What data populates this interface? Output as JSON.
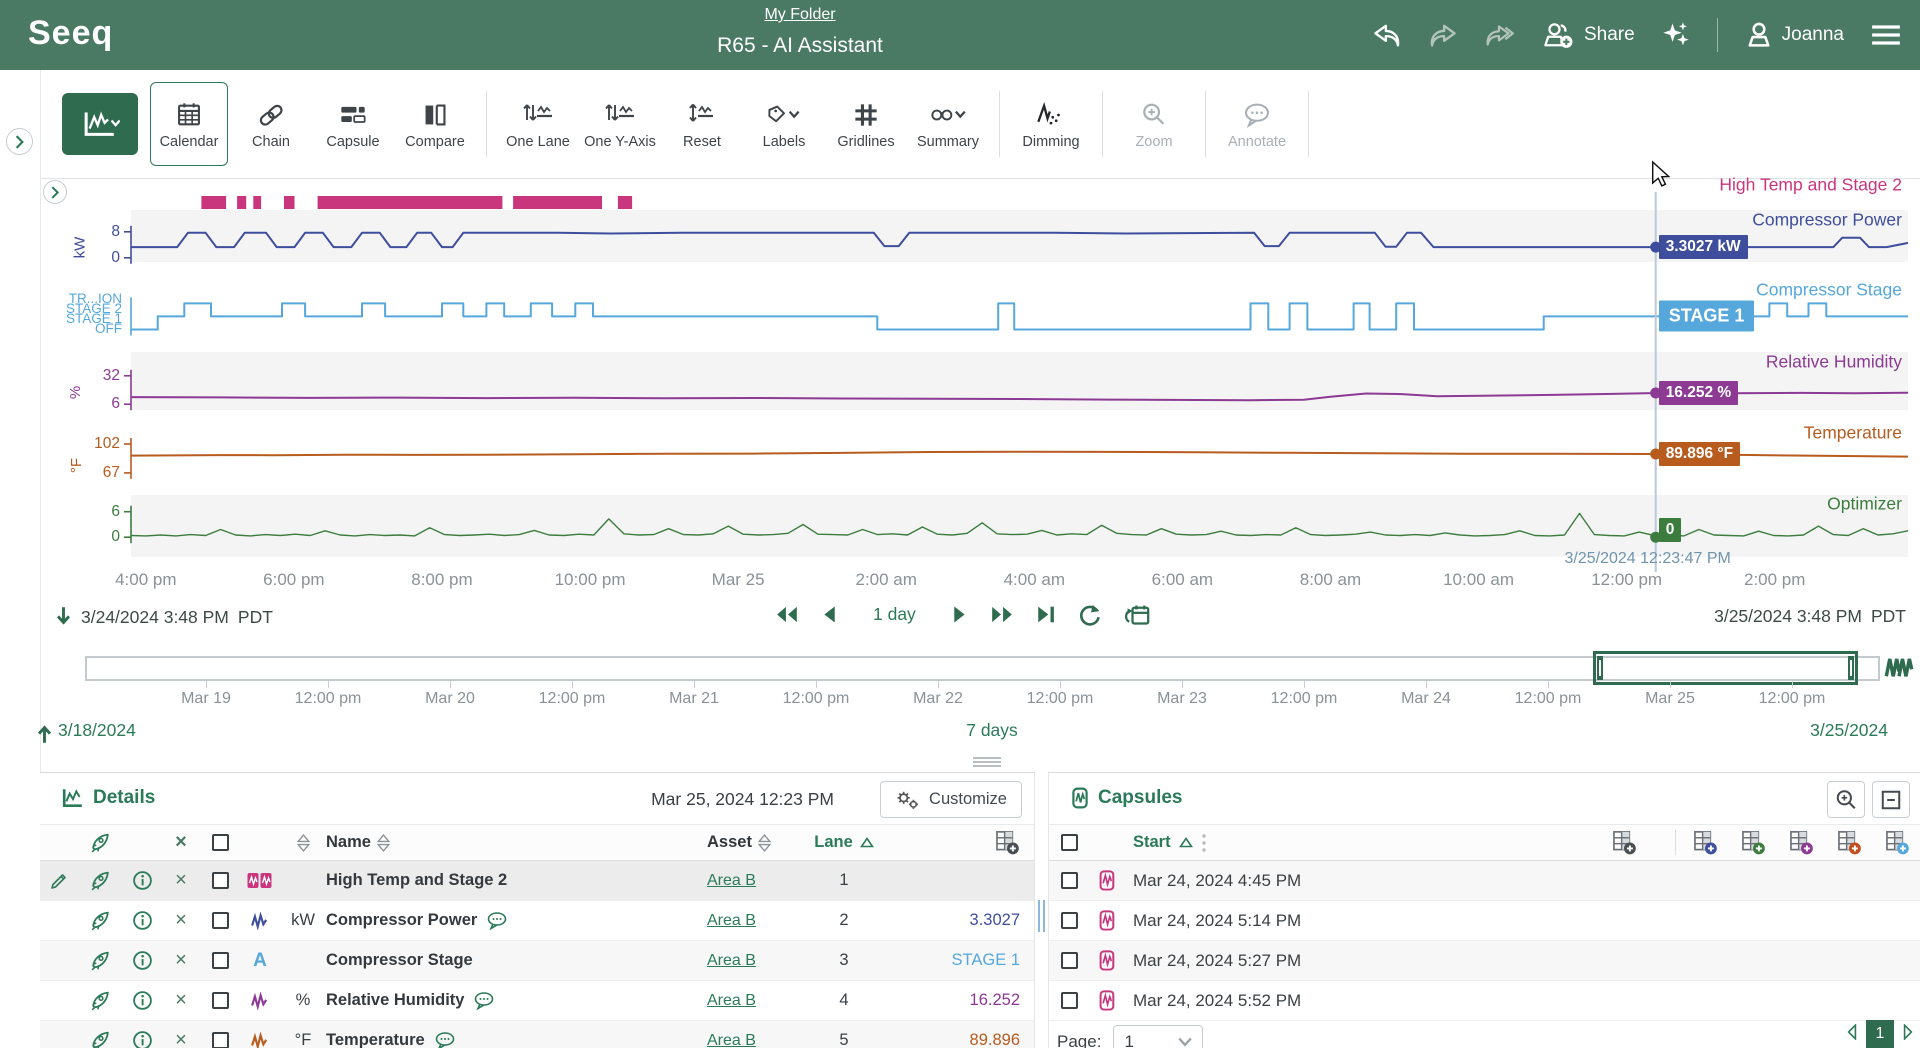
{
  "header": {
    "logo": "Seeq",
    "breadcrumb": "My Folder",
    "title": "R65 - AI Assistant",
    "share_label": "Share",
    "user_name": "Joanna"
  },
  "toolbar": {
    "items": [
      {
        "id": "trend-mode",
        "label": "",
        "kind": "primary"
      },
      {
        "id": "calendar",
        "label": "Calendar",
        "state": "active"
      },
      {
        "id": "chain",
        "label": "Chain"
      },
      {
        "id": "capsule",
        "label": "Capsule"
      },
      {
        "id": "compare",
        "label": "Compare"
      },
      {
        "kind": "divider"
      },
      {
        "id": "one-lane",
        "label": "One Lane"
      },
      {
        "id": "one-y-axis",
        "label": "One Y-Axis"
      },
      {
        "id": "reset",
        "label": "Reset"
      },
      {
        "id": "labels",
        "label": "Labels"
      },
      {
        "id": "gridlines",
        "label": "Gridlines"
      },
      {
        "id": "summary",
        "label": "Summary"
      },
      {
        "kind": "divider"
      },
      {
        "id": "dimming",
        "label": "Dimming"
      },
      {
        "kind": "divider"
      },
      {
        "id": "zoom",
        "label": "Zoom",
        "state": "disabled"
      },
      {
        "kind": "divider"
      },
      {
        "id": "annotate",
        "label": "Annotate",
        "state": "disabled"
      },
      {
        "kind": "divider"
      }
    ]
  },
  "chart_data": {
    "type": "line",
    "x_window": {
      "start": "3/24/2024 3:48 PM",
      "start_tz": "PDT",
      "end": "3/25/2024 3:48 PM",
      "end_tz": "PDT",
      "duration": "1 day"
    },
    "x_ticks": [
      "4:00 pm",
      "6:00 pm",
      "8:00 pm",
      "10:00 pm",
      "Mar 25",
      "2:00 am",
      "4:00 am",
      "6:00 am",
      "8:00 am",
      "10:00 am",
      "12:00 pm",
      "2:00 pm"
    ],
    "cursor": {
      "t": 0.858,
      "timestamp": "3/25/2024 12:23:47 PM"
    },
    "capsule_series": {
      "name": "High Temp and Stage 2",
      "color": "#C9367E",
      "windows": [
        [
          0.0396,
          0.0535
        ],
        [
          0.0597,
          0.0648
        ],
        [
          0.0688,
          0.0732
        ],
        [
          0.0861,
          0.092
        ],
        [
          0.105,
          0.209
        ],
        [
          0.215,
          0.265
        ],
        [
          0.274,
          0.282
        ]
      ]
    },
    "lanes": [
      {
        "name": "Compressor Power",
        "unit": "kW",
        "color": "#3F4E9C",
        "lane": 1,
        "value_range": [
          0,
          8
        ],
        "axis_ticks": [
          {
            "label": "8",
            "value": 8
          },
          {
            "label": "0",
            "value": 0
          }
        ],
        "cursor_value": 3.3027,
        "cursor_text": "3.3027 kW",
        "points": [
          [
            0,
            3.3
          ],
          [
            0.026,
            3.3
          ],
          [
            0.032,
            7.7
          ],
          [
            0.042,
            7.7
          ],
          [
            0.048,
            3.3
          ],
          [
            0.058,
            3.3
          ],
          [
            0.064,
            7.7
          ],
          [
            0.076,
            7.7
          ],
          [
            0.082,
            3.3
          ],
          [
            0.092,
            3.3
          ],
          [
            0.098,
            7.7
          ],
          [
            0.108,
            7.7
          ],
          [
            0.114,
            3.3
          ],
          [
            0.124,
            3.3
          ],
          [
            0.13,
            7.7
          ],
          [
            0.14,
            7.7
          ],
          [
            0.146,
            3.3
          ],
          [
            0.155,
            3.3
          ],
          [
            0.161,
            7.7
          ],
          [
            0.169,
            7.7
          ],
          [
            0.175,
            3.3
          ],
          [
            0.181,
            3.3
          ],
          [
            0.187,
            7.7
          ],
          [
            0.24,
            7.7
          ],
          [
            0.27,
            7.5
          ],
          [
            0.31,
            7.7
          ],
          [
            0.418,
            7.7
          ],
          [
            0.424,
            3.6
          ],
          [
            0.432,
            3.6
          ],
          [
            0.438,
            7.7
          ],
          [
            0.52,
            7.7
          ],
          [
            0.56,
            7.5
          ],
          [
            0.632,
            7.7
          ],
          [
            0.638,
            3.6
          ],
          [
            0.646,
            3.6
          ],
          [
            0.652,
            7.7
          ],
          [
            0.7,
            7.7
          ],
          [
            0.706,
            3.4
          ],
          [
            0.712,
            3.4
          ],
          [
            0.718,
            7.7
          ],
          [
            0.726,
            7.7
          ],
          [
            0.733,
            3.3
          ],
          [
            0.958,
            3.3
          ],
          [
            0.963,
            6.2
          ],
          [
            0.973,
            6.2
          ],
          [
            0.978,
            3.3
          ],
          [
            0.988,
            3.3
          ],
          [
            1,
            4.6
          ]
        ]
      },
      {
        "name": "Compressor Stage",
        "unit": "",
        "color": "#56A7DC",
        "lane": 2,
        "value_range": [
          0,
          2
        ],
        "axis_stack": [
          "TR...ION",
          "STAGE 2",
          "STAGE 1",
          "OFF"
        ],
        "cursor_value": 1,
        "cursor_text": "STAGE 1",
        "step": true,
        "points": [
          [
            0,
            0
          ],
          [
            0.015,
            0
          ],
          [
            0.015,
            1
          ],
          [
            0.03,
            1
          ],
          [
            0.03,
            2
          ],
          [
            0.045,
            2
          ],
          [
            0.045,
            1
          ],
          [
            0.085,
            1
          ],
          [
            0.085,
            2
          ],
          [
            0.098,
            2
          ],
          [
            0.098,
            1
          ],
          [
            0.13,
            1
          ],
          [
            0.13,
            2
          ],
          [
            0.143,
            2
          ],
          [
            0.143,
            1
          ],
          [
            0.175,
            1
          ],
          [
            0.175,
            2
          ],
          [
            0.187,
            2
          ],
          [
            0.187,
            1
          ],
          [
            0.2,
            1
          ],
          [
            0.2,
            2
          ],
          [
            0.21,
            2
          ],
          [
            0.21,
            1
          ],
          [
            0.225,
            1
          ],
          [
            0.225,
            2
          ],
          [
            0.237,
            2
          ],
          [
            0.237,
            1
          ],
          [
            0.25,
            1
          ],
          [
            0.25,
            2
          ],
          [
            0.26,
            2
          ],
          [
            0.26,
            1
          ],
          [
            0.42,
            1
          ],
          [
            0.42,
            0
          ],
          [
            0.488,
            0
          ],
          [
            0.488,
            2
          ],
          [
            0.497,
            2
          ],
          [
            0.497,
            0
          ],
          [
            0.63,
            0
          ],
          [
            0.63,
            2
          ],
          [
            0.64,
            2
          ],
          [
            0.64,
            0
          ],
          [
            0.652,
            0
          ],
          [
            0.652,
            2
          ],
          [
            0.662,
            2
          ],
          [
            0.662,
            0
          ],
          [
            0.688,
            0
          ],
          [
            0.688,
            2
          ],
          [
            0.697,
            2
          ],
          [
            0.697,
            0
          ],
          [
            0.712,
            0
          ],
          [
            0.712,
            2
          ],
          [
            0.722,
            2
          ],
          [
            0.722,
            0
          ],
          [
            0.795,
            0
          ],
          [
            0.795,
            1
          ],
          [
            0.922,
            1
          ],
          [
            0.922,
            2
          ],
          [
            0.932,
            2
          ],
          [
            0.932,
            1
          ],
          [
            0.944,
            1
          ],
          [
            0.944,
            2
          ],
          [
            0.954,
            2
          ],
          [
            0.954,
            1
          ],
          [
            1,
            1
          ]
        ]
      },
      {
        "name": "Relative Humidity",
        "unit": "%",
        "color": "#8C3A94",
        "lane": 3,
        "value_range": [
          6,
          32
        ],
        "axis_ticks": [
          {
            "label": "32",
            "value": 32
          },
          {
            "label": "6",
            "value": 6
          }
        ],
        "cursor_value": 16.252,
        "cursor_text": "16.252 %",
        "points": [
          [
            0,
            12.5
          ],
          [
            0.05,
            12.2
          ],
          [
            0.1,
            11.8
          ],
          [
            0.15,
            12.0
          ],
          [
            0.2,
            11.6
          ],
          [
            0.25,
            11.9
          ],
          [
            0.3,
            11.4
          ],
          [
            0.35,
            11.7
          ],
          [
            0.4,
            11.2
          ],
          [
            0.45,
            11.0
          ],
          [
            0.5,
            10.8
          ],
          [
            0.55,
            10.2
          ],
          [
            0.6,
            9.8
          ],
          [
            0.63,
            9.7
          ],
          [
            0.66,
            10.1
          ],
          [
            0.675,
            12.8
          ],
          [
            0.695,
            15.8
          ],
          [
            0.715,
            15.2
          ],
          [
            0.735,
            13.2
          ],
          [
            0.76,
            13.7
          ],
          [
            0.8,
            14.5
          ],
          [
            0.83,
            15.3
          ],
          [
            0.858,
            16.25
          ],
          [
            0.9,
            16.0
          ],
          [
            0.94,
            16.3
          ],
          [
            0.97,
            16.1
          ],
          [
            1,
            16.5
          ]
        ]
      },
      {
        "name": "Temperature",
        "unit": "°F",
        "color": "#B75B1F",
        "lane": 4,
        "value_range": [
          67,
          102
        ],
        "axis_ticks": [
          {
            "label": "102",
            "value": 102
          },
          {
            "label": "67",
            "value": 67
          }
        ],
        "cursor_value": 89.896,
        "cursor_text": "89.896 °F",
        "points": [
          [
            0,
            88.0
          ],
          [
            0.05,
            88.6
          ],
          [
            0.08,
            88.4
          ],
          [
            0.12,
            89.0
          ],
          [
            0.16,
            88.8
          ],
          [
            0.2,
            89.1
          ],
          [
            0.25,
            89.6
          ],
          [
            0.3,
            90.2
          ],
          [
            0.35,
            90.4
          ],
          [
            0.4,
            91.2
          ],
          [
            0.45,
            92.3
          ],
          [
            0.5,
            92.6
          ],
          [
            0.55,
            92.4
          ],
          [
            0.6,
            92.0
          ],
          [
            0.65,
            91.4
          ],
          [
            0.7,
            90.7
          ],
          [
            0.75,
            90.3
          ],
          [
            0.8,
            90.1
          ],
          [
            0.858,
            89.9
          ],
          [
            0.9,
            88.9
          ],
          [
            0.95,
            87.7
          ],
          [
            1,
            86.7
          ]
        ]
      },
      {
        "name": "Optimizer",
        "unit": "",
        "color": "#3C7D3F",
        "lane": 5,
        "value_range": [
          0,
          6
        ],
        "axis_ticks": [
          {
            "label": "6",
            "value": 6
          },
          {
            "label": "0",
            "value": 0
          }
        ],
        "cursor_value": 0,
        "cursor_text": "0",
        "values": [
          0.4,
          0.3,
          0.5,
          0.3,
          0.6,
          0.4,
          1.8,
          0.5,
          0.3,
          0.6,
          0.4,
          0.7,
          0.4,
          1.5,
          0.5,
          0.3,
          0.6,
          0.4,
          0.5,
          0.3,
          2.2,
          0.6,
          0.4,
          0.5,
          0.7,
          0.4,
          0.6,
          1.6,
          0.5,
          0.4,
          0.7,
          0.5,
          4.3,
          0.8,
          0.5,
          0.6,
          2.0,
          0.6,
          0.5,
          0.8,
          2.6,
          0.7,
          0.5,
          0.6,
          0.9,
          3.0,
          0.7,
          0.6,
          0.5,
          1.8,
          0.6,
          0.8,
          0.5,
          2.4,
          0.7,
          0.5,
          0.9,
          3.4,
          0.8,
          0.6,
          0.7,
          1.6,
          0.5,
          0.8,
          0.6,
          2.8,
          0.9,
          0.6,
          0.5,
          2.0,
          0.7,
          0.5,
          0.6,
          1.4,
          0.5,
          0.4,
          0.6,
          0.5,
          2.2,
          0.6,
          0.4,
          0.5,
          0.7,
          1.2,
          0.5,
          0.4,
          0.6,
          0.4,
          1.0,
          0.5,
          0.3,
          0.4,
          0.6,
          1.5,
          0.4,
          0.3,
          0.5,
          5.6,
          0.6,
          0.4,
          0.3,
          1.2,
          0.4,
          0.5,
          0.3,
          1.8,
          0.5,
          0.4,
          0.3,
          1.4,
          0.4,
          0.3,
          0.5,
          2.6,
          0.6,
          0.4,
          2.0,
          0.5,
          0.8,
          1.5
        ]
      }
    ]
  },
  "timeline": {
    "ticks": [
      "Mar 19",
      "12:00 pm",
      "Mar 20",
      "12:00 pm",
      "Mar 21",
      "12:00 pm",
      "Mar 22",
      "12:00 pm",
      "Mar 23",
      "12:00 pm",
      "Mar 24",
      "12:00 pm",
      "Mar 25",
      "12:00 pm"
    ],
    "start_date": "3/18/2024",
    "end_date": "3/25/2024",
    "duration": "7 days"
  },
  "details": {
    "title": "Details",
    "timestamp": "Mar 25, 2024 12:23 PM",
    "customize_label": "Customize",
    "columns": {
      "name": "Name",
      "asset": "Asset",
      "lane": "Lane"
    },
    "rows": [
      {
        "selected": true,
        "pencil": true,
        "icon": "capsule-set",
        "color": "#C9367E",
        "unit": "",
        "name": "High Temp and Stage 2",
        "comment": false,
        "asset": "Area B",
        "lane": "1",
        "value": "",
        "value_color": ""
      },
      {
        "icon": "signal",
        "color": "#3F4E9C",
        "unit": "kW",
        "name": "Compressor Power",
        "comment": true,
        "asset": "Area B",
        "lane": "2",
        "value": "3.3027",
        "value_color": "#3F4E9C"
      },
      {
        "icon": "string",
        "color": "#56A7DC",
        "unit": "",
        "name": "Compressor Stage",
        "comment": false,
        "asset": "Area B",
        "lane": "3",
        "value": "STAGE 1",
        "value_color": "#56A7DC"
      },
      {
        "icon": "signal",
        "color": "#8C3A94",
        "unit": "%",
        "name": "Relative Humidity",
        "comment": true,
        "asset": "Area B",
        "lane": "4",
        "value": "16.252",
        "value_color": "#8C3A94"
      },
      {
        "icon": "signal",
        "color": "#B75B1F",
        "unit": "°F",
        "name": "Temperature",
        "comment": true,
        "asset": "Area B",
        "lane": "5",
        "value": "89.896",
        "value_color": "#B75B1F"
      }
    ]
  },
  "capsules": {
    "title": "Capsules",
    "columns": {
      "start": "Start"
    },
    "rows": [
      {
        "start": "Mar 24, 2024 4:45 PM"
      },
      {
        "start": "Mar 24, 2024 5:14 PM"
      },
      {
        "start": "Mar 24, 2024 5:27 PM"
      },
      {
        "start": "Mar 24, 2024 5:52 PM"
      }
    ],
    "add_column_colors": [
      "#4a4f54",
      "#3F4E9C",
      "#3C7D3F",
      "#8C3A94",
      "#C14E1E",
      "#56A7DC"
    ],
    "page_label": "Page:",
    "page_value": "1",
    "page_current": "1"
  }
}
